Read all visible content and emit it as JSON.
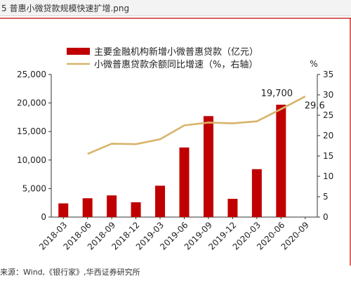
{
  "header": {
    "tab_title": "5 普惠小微贷款规模快速扩增.png"
  },
  "chart_data": {
    "type": "bar",
    "categories": [
      "2018-03",
      "2018-06",
      "2018-09",
      "2018-12",
      "2019-03",
      "2019-06",
      "2019-09",
      "2019-12",
      "2020-03",
      "2020-06",
      "2020-09"
    ],
    "series": [
      {
        "name": "主要金融机构新增小微普惠贷款（亿元）",
        "type": "bar",
        "axis": "left",
        "color": "#c00000",
        "values": [
          2400,
          3300,
          3800,
          2600,
          5500,
          12200,
          17700,
          3200,
          8400,
          19700,
          null
        ]
      },
      {
        "name": "小微普惠贷款余额同比增速（%，右轴）",
        "type": "line",
        "axis": "right",
        "color": "#d7b46a",
        "values": [
          null,
          15.5,
          18.0,
          17.9,
          19.1,
          22.5,
          23.2,
          23.0,
          23.5,
          26.5,
          29.6
        ]
      }
    ],
    "ylim_left": [
      0,
      25000
    ],
    "ylim_right": [
      0,
      35
    ],
    "yticks_left": [
      "0",
      "5,000",
      "10,000",
      "15,000",
      "20,000",
      "25,000"
    ],
    "yticks_right": [
      "0",
      "5",
      "10",
      "15",
      "20",
      "25",
      "30",
      "35"
    ],
    "right_axis_unit": "%",
    "annotations": [
      "19,700",
      "29.6"
    ],
    "legend_position": "top",
    "grid": false
  },
  "source": "来源：Wind,《银行家》,华西证券研究所"
}
